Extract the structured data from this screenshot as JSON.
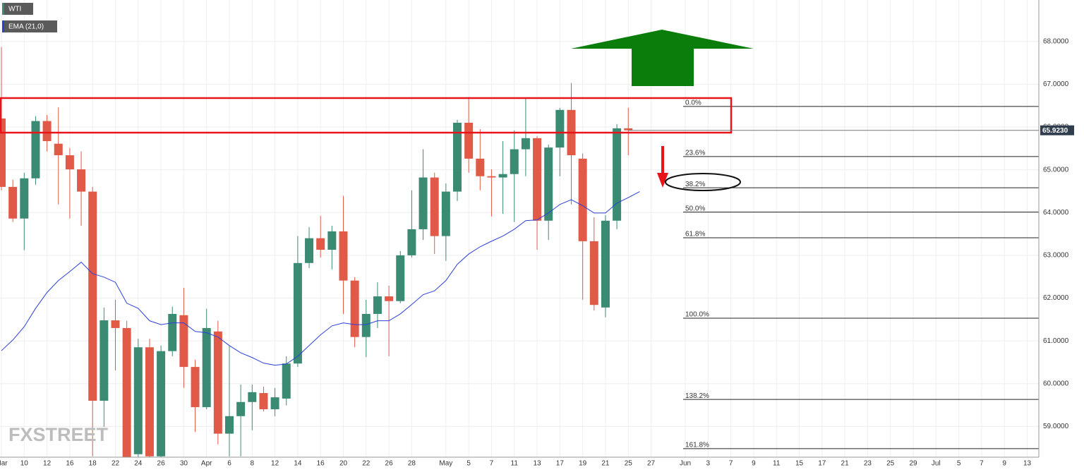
{
  "chart_data": {
    "type": "candlestick",
    "categories": [
      "Mar",
      null,
      "10",
      null,
      "12",
      null,
      "16",
      null,
      "18",
      null,
      "22",
      null,
      "24",
      null,
      "26",
      null,
      "30",
      null,
      "Apr",
      null,
      "6",
      null,
      "8",
      null,
      "12",
      null,
      "14",
      null,
      "16",
      null,
      "20",
      null,
      "22",
      null,
      "26",
      null,
      "28",
      null,
      null,
      "May",
      null,
      "5",
      null,
      "7",
      null,
      "11",
      null,
      "13",
      null,
      "17",
      null,
      "19",
      null,
      "21",
      null,
      "25",
      null,
      "27",
      null,
      null,
      "Jun",
      null,
      "3",
      null,
      "7",
      null,
      "9",
      null,
      "11",
      null,
      "15",
      null,
      "17",
      null,
      "21",
      null,
      "23",
      null,
      "25",
      null,
      "29",
      null,
      "Jul",
      null,
      "5",
      null,
      "7",
      null,
      "9",
      null,
      "13"
    ],
    "series": [
      {
        "name": "WTI",
        "up_color": "#3b8b74",
        "down_color": "#e05a47",
        "open": [
          66.2,
          64.6,
          63.86,
          64.8,
          66.14,
          65.61,
          65.34,
          65.01,
          64.49,
          59.6,
          61.48,
          61.3,
          58.35,
          60.85,
          58.3,
          60.76,
          61.6,
          60.39,
          59.45,
          61.22,
          58.83,
          59.24,
          59.57,
          59.78,
          59.4,
          59.65,
          60.47,
          62.82,
          63.4,
          63.13,
          63.56,
          62.41,
          61.09,
          61.63,
          62.04,
          61.93,
          63.0,
          63.61,
          64.82,
          63.45,
          64.49,
          66.1,
          65.26,
          64.85,
          64.82,
          64.9,
          65.48,
          65.74,
          63.81,
          65.52,
          66.4,
          65.26,
          63.33,
          61.78,
          63.81,
          65.97,
          null,
          null,
          null,
          null,
          null,
          null,
          null,
          null,
          null,
          null,
          null,
          null,
          null,
          null,
          null,
          null,
          null,
          null,
          null,
          null,
          null,
          null,
          null,
          null,
          null,
          null,
          null,
          null,
          null,
          null,
          null,
          null,
          null,
          null,
          null
        ],
        "high": [
          67.87,
          64.77,
          64.93,
          66.25,
          66.28,
          66.46,
          65.51,
          65.43,
          64.6,
          61.78,
          61.96,
          61.47,
          61.05,
          61.05,
          60.89,
          61.8,
          62.24,
          60.56,
          61.75,
          61.47,
          60.89,
          59.98,
          59.98,
          59.93,
          59.9,
          60.64,
          63.45,
          63.66,
          63.92,
          63.69,
          64.39,
          62.49,
          61.96,
          62.37,
          62.29,
          63.1,
          64.52,
          65.48,
          64.93,
          64.68,
          66.17,
          66.7,
          65.95,
          65.01,
          65.67,
          65.92,
          66.66,
          65.79,
          65.59,
          66.45,
          67.03,
          65.38,
          63.89,
          63.94,
          66.07,
          66.45,
          null,
          null,
          null,
          null,
          null,
          null,
          null,
          null,
          null,
          null,
          null,
          null,
          null,
          null,
          null,
          null,
          null,
          null,
          null,
          null,
          null,
          null,
          null,
          null,
          null,
          null,
          null,
          null,
          null,
          null,
          null,
          null,
          null,
          null,
          null
        ],
        "low": [
          64.52,
          63.78,
          63.12,
          64.65,
          65.43,
          64.19,
          63.86,
          63.69,
          58.3,
          58.99,
          60.31,
          57.9,
          58.1,
          58.1,
          58.1,
          60.64,
          59.9,
          58.87,
          59.4,
          58.58,
          58.3,
          58.3,
          58.91,
          59.35,
          59.24,
          59.49,
          60.39,
          62.7,
          62.95,
          62.67,
          61.63,
          60.85,
          60.62,
          61.3,
          60.64,
          61.88,
          62.95,
          63.36,
          63.03,
          62.87,
          64.27,
          64.93,
          64.52,
          63.91,
          63.97,
          63.78,
          64.85,
          63.13,
          63.36,
          64.85,
          64.19,
          61.96,
          61.71,
          61.55,
          63.61,
          65.34,
          null,
          null,
          null,
          null,
          null,
          null,
          null,
          null,
          null,
          null,
          null,
          null,
          null,
          null,
          null,
          null,
          null,
          null,
          null,
          null,
          null,
          null,
          null,
          null,
          null,
          null,
          null,
          null,
          null,
          null,
          null,
          null,
          null,
          null,
          null
        ],
        "close": [
          64.6,
          63.86,
          64.8,
          66.14,
          65.67,
          65.34,
          65.01,
          64.49,
          59.6,
          61.48,
          61.3,
          58.1,
          60.85,
          58.3,
          60.76,
          61.63,
          60.39,
          59.45,
          61.3,
          58.83,
          59.24,
          59.57,
          59.8,
          59.4,
          59.68,
          60.47,
          62.82,
          63.4,
          63.13,
          63.56,
          62.41,
          61.09,
          61.63,
          62.04,
          61.93,
          63.0,
          63.61,
          64.82,
          63.45,
          64.49,
          66.1,
          65.26,
          64.85,
          64.82,
          64.9,
          65.48,
          65.74,
          63.81,
          65.52,
          66.4,
          65.34,
          63.33,
          61.84,
          63.81,
          65.97,
          65.923,
          null,
          null,
          null,
          null,
          null,
          null,
          null,
          null,
          null,
          null,
          null,
          null,
          null,
          null,
          null,
          null,
          null,
          null,
          null,
          null,
          null,
          null,
          null,
          null,
          null,
          null,
          null,
          null,
          null,
          null,
          null,
          null,
          null,
          null,
          null
        ]
      },
      {
        "name": "EMA (21,0)",
        "color": "#2b3fd8",
        "values": [
          60.77,
          61.02,
          61.33,
          61.76,
          62.13,
          62.41,
          62.62,
          62.84,
          62.57,
          62.49,
          62.37,
          61.88,
          61.76,
          61.47,
          61.38,
          61.42,
          61.42,
          61.22,
          61.19,
          61.09,
          60.89,
          60.72,
          60.61,
          60.48,
          60.43,
          60.46,
          60.64,
          60.89,
          61.14,
          61.35,
          61.42,
          61.38,
          61.38,
          61.47,
          61.47,
          61.63,
          61.85,
          62.08,
          62.17,
          62.41,
          62.79,
          63.03,
          63.2,
          63.33,
          63.45,
          63.61,
          63.81,
          63.83,
          63.99,
          64.19,
          64.3,
          64.16,
          63.99,
          63.99,
          64.22,
          64.35,
          64.49,
          null,
          null,
          null,
          null,
          null,
          null,
          null,
          null,
          null,
          null,
          null,
          null,
          null,
          null,
          null,
          null,
          null,
          null,
          null,
          null,
          null,
          null,
          null,
          null,
          null,
          null,
          null,
          null,
          null,
          null,
          null,
          null,
          null,
          null
        ]
      }
    ],
    "ylim": [
      58.28,
      68.97
    ],
    "yticks": [
      {
        "value": 59,
        "label": "59.0000"
      },
      {
        "value": 60,
        "label": "60.0000"
      },
      {
        "value": 61,
        "label": "61.0000"
      },
      {
        "value": 62,
        "label": "62.0000"
      },
      {
        "value": 63,
        "label": "63.0000"
      },
      {
        "value": 64,
        "label": "64.0000"
      },
      {
        "value": 65,
        "label": "65.0000"
      },
      {
        "value": 66,
        "label": "66.0000"
      },
      {
        "value": 67,
        "label": "67.0000"
      },
      {
        "value": 68,
        "label": "68.0000"
      }
    ],
    "grid": true,
    "last_price": {
      "value": 65.923,
      "label": "65.9230"
    },
    "fibonacci": [
      {
        "label": "0.0%",
        "value": 66.48
      },
      {
        "label": "23.6%",
        "value": 65.31
      },
      {
        "label": "38.2%",
        "value": 64.58
      },
      {
        "label": "50.0%",
        "value": 64.01
      },
      {
        "label": "61.8%",
        "value": 63.41
      },
      {
        "label": "100.0%",
        "value": 61.53
      },
      {
        "label": "138.2%",
        "value": 59.63
      },
      {
        "label": "161.8%",
        "value": 58.48
      }
    ],
    "watermark": "FXSTREET"
  }
}
